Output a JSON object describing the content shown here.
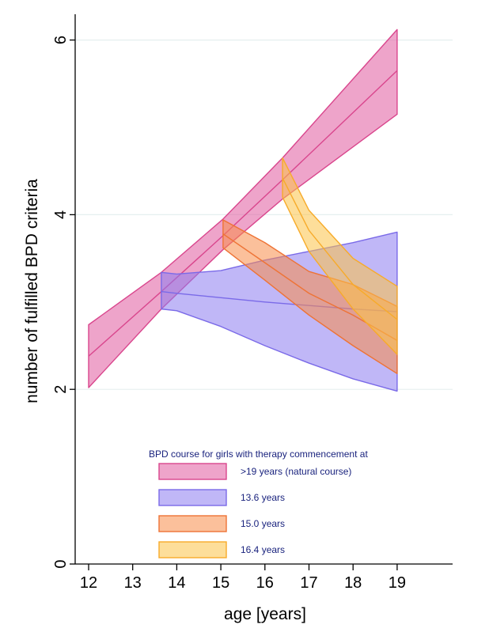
{
  "chart_data": {
    "type": "area",
    "title": "",
    "xlabel": "age [years]",
    "ylabel": "number of fulfilled BPD criteria",
    "xlim": [
      12,
      20.2
    ],
    "ylim": [
      0,
      6.15
    ],
    "xticks": [
      12,
      13,
      14,
      15,
      16,
      17,
      18,
      19
    ],
    "yticks": [
      0,
      2,
      4,
      6
    ],
    "grid": true,
    "legend": {
      "title": "BPD course for girls with therapy commencement at",
      "placement": "bottom-center"
    },
    "series": [
      {
        "name": ">19 years (natural course)",
        "fill": "#e05a9e",
        "stroke": "#d9468d",
        "x": [
          12,
          13.65,
          15.05,
          16.4,
          19
        ],
        "mean": [
          2.38,
          3.12,
          3.76,
          4.4,
          5.65
        ],
        "lower": [
          2.02,
          2.92,
          3.6,
          4.18,
          5.15
        ],
        "upper": [
          2.74,
          3.34,
          3.95,
          4.65,
          6.12
        ]
      },
      {
        "name": "13.6 years",
        "fill": "#8c7cf0",
        "stroke": "#7a6ae8",
        "x": [
          13.65,
          14,
          15,
          16,
          17,
          18,
          19
        ],
        "mean": [
          3.12,
          3.1,
          3.05,
          3.0,
          2.96,
          2.92,
          2.89
        ],
        "lower": [
          2.92,
          2.9,
          2.72,
          2.5,
          2.3,
          2.12,
          1.98
        ],
        "upper": [
          3.34,
          3.32,
          3.36,
          3.48,
          3.58,
          3.68,
          3.8
        ]
      },
      {
        "name": "15.0 years",
        "fill": "#f78c48",
        "stroke": "#ee7335",
        "x": [
          15.05,
          16,
          17,
          18,
          19
        ],
        "mean": [
          3.78,
          3.45,
          3.1,
          2.85,
          2.56
        ],
        "lower": [
          3.62,
          3.25,
          2.85,
          2.5,
          2.18
        ],
        "upper": [
          3.94,
          3.68,
          3.35,
          3.2,
          2.95
        ]
      },
      {
        "name": "16.4 years",
        "fill": "#fbc247",
        "stroke": "#f7ab2a",
        "x": [
          16.4,
          17,
          18,
          19
        ],
        "mean": [
          4.42,
          3.82,
          3.2,
          2.8
        ],
        "lower": [
          4.2,
          3.58,
          2.92,
          2.4
        ],
        "upper": [
          4.65,
          4.05,
          3.5,
          3.18
        ]
      }
    ]
  }
}
